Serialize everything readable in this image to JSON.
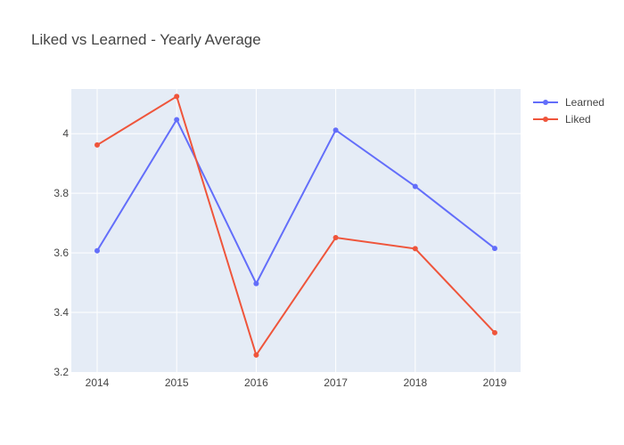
{
  "chart_data": {
    "type": "line",
    "title": "Liked vs Learned  - Yearly Average",
    "xlabel": "",
    "ylabel": "",
    "x": [
      2014,
      2015,
      2016,
      2017,
      2018,
      2019
    ],
    "x_ticks": [
      "2014",
      "2015",
      "2016",
      "2017",
      "2018",
      "2019"
    ],
    "y_ticks": [
      "3.2",
      "3.4",
      "3.6",
      "3.8",
      "4"
    ],
    "ylim": [
      3.2,
      4.15
    ],
    "grid": true,
    "legend_position": "top-right",
    "series": [
      {
        "name": "Learned",
        "color": "#636efa",
        "values": [
          3.607,
          4.047,
          3.497,
          4.012,
          3.823,
          3.615
        ]
      },
      {
        "name": "Liked",
        "color": "#ef553b",
        "values": [
          3.962,
          4.125,
          3.257,
          3.651,
          3.614,
          3.332
        ]
      }
    ],
    "plot_background": "#e5ecf6",
    "gridline_color": "#ffffff"
  }
}
